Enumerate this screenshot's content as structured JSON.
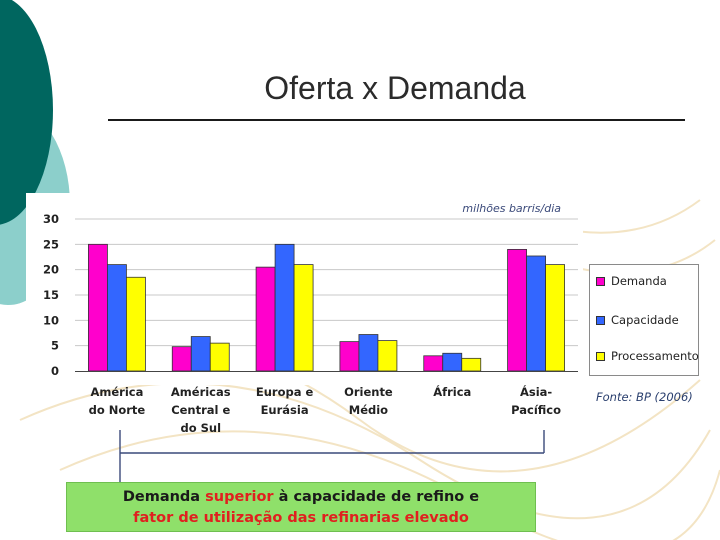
{
  "slide": {
    "title": "Oferta x Demanda"
  },
  "chart_data": {
    "type": "bar",
    "unit_label": "milhões barris/dia",
    "categories": [
      [
        "América",
        "do Norte"
      ],
      [
        "Américas",
        "Central e",
        "do Sul"
      ],
      [
        "Europa e",
        "Eurásia"
      ],
      [
        "Oriente",
        "Médio"
      ],
      [
        "África"
      ],
      [
        "Ásia-",
        "Pacífico"
      ]
    ],
    "series": [
      {
        "name": "Demanda",
        "color": "#ff00cc",
        "values": [
          25,
          4.8,
          20.5,
          5.8,
          3,
          24
        ]
      },
      {
        "name": "Capacidade",
        "color": "#3366ff",
        "values": [
          21,
          6.8,
          25,
          7.2,
          3.5,
          22.7
        ]
      },
      {
        "name": "Processamento",
        "color": "#ffff00",
        "values": [
          18.5,
          5.5,
          21,
          6,
          2.5,
          21
        ]
      }
    ],
    "ylim": [
      0,
      30
    ],
    "yticks": [
      0,
      5,
      10,
      15,
      20,
      25,
      30
    ],
    "grid": true,
    "legend_position": "right",
    "source": "Fonte: BP (2006)"
  },
  "callout": {
    "line1_part1": "Demanda ",
    "line1_highlight": "superior",
    "line1_part2": " à capacidade de refino e",
    "line2": "fator de utilização das refinarias elevado"
  },
  "colors": {
    "accent_dark": "#00665f",
    "accent_light": "#8ccfcb",
    "callout_bg": "#8fe06a",
    "highlight_text": "#e0201f"
  }
}
